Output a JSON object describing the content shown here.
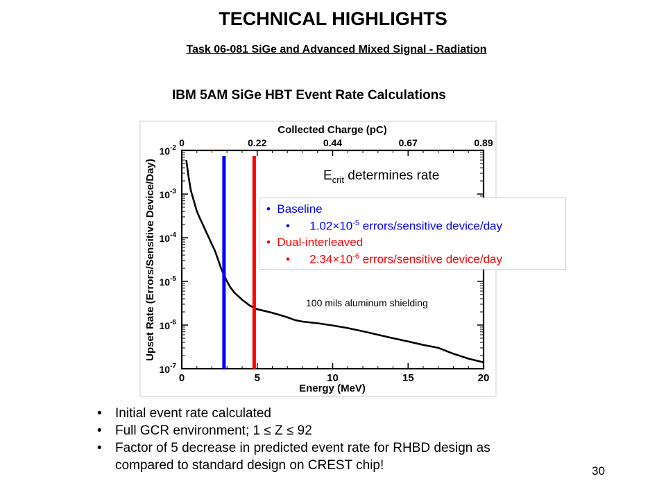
{
  "slide": {
    "title": "TECHNICAL HIGHLIGHTS",
    "subtitle": "Task 06-081 SiGe and Advanced Mixed Signal - Radiation",
    "page_number": "30"
  },
  "chart_data": {
    "type": "line",
    "title": "IBM 5AM SiGe HBT Event Rate Calculations",
    "xlabel": "Energy (MeV)",
    "ylabel": "Upset Rate (Errors/Sensitive Device/Day)",
    "top_xlabel": "Collected Charge (pC)",
    "xlim": [
      0,
      20
    ],
    "ylim": [
      1e-07,
      0.01
    ],
    "yscale": "log",
    "x_ticks": [
      "0",
      "5",
      "10",
      "15",
      "20"
    ],
    "y_ticks": [
      {
        "base": "10",
        "exp": "-7"
      },
      {
        "base": "10",
        "exp": "-6"
      },
      {
        "base": "10",
        "exp": "-5"
      },
      {
        "base": "10",
        "exp": "-4"
      },
      {
        "base": "10",
        "exp": "-3"
      },
      {
        "base": "10",
        "exp": "-2"
      }
    ],
    "top_ticks": [
      "0",
      "0.22",
      "0.44",
      "0.67",
      "0.89"
    ],
    "series": [
      {
        "color": "#000000",
        "points": [
          [
            0.3,
            0.006
          ],
          [
            0.45,
            0.0025
          ],
          [
            0.6,
            0.0012
          ],
          [
            0.8,
            0.0007
          ],
          [
            1.0,
            0.0004
          ],
          [
            1.2,
            0.00028
          ],
          [
            1.4,
            0.0002
          ],
          [
            1.6,
            0.00014
          ],
          [
            1.8,
            0.0001
          ],
          [
            2.0,
            7e-05
          ],
          [
            2.2,
            5e-05
          ],
          [
            2.4,
            3.2e-05
          ],
          [
            2.6,
            2e-05
          ],
          [
            2.8,
            1.4e-05
          ],
          [
            3.0,
            1e-05
          ],
          [
            3.2,
            7.5e-06
          ],
          [
            3.5,
            5.5e-06
          ],
          [
            4.0,
            3.8e-06
          ],
          [
            4.5,
            2.8e-06
          ],
          [
            5.0,
            2.3e-06
          ],
          [
            5.5,
            2.1e-06
          ],
          [
            6.0,
            1.9e-06
          ],
          [
            6.5,
            1.7e-06
          ],
          [
            7.0,
            1.5e-06
          ],
          [
            7.5,
            1.3e-06
          ],
          [
            8.0,
            1.2e-06
          ],
          [
            9.0,
            1.1e-06
          ],
          [
            10.0,
            9.8e-07
          ],
          [
            11.0,
            8.5e-07
          ],
          [
            12.0,
            7.2e-07
          ],
          [
            13.0,
            6e-07
          ],
          [
            14.0,
            5e-07
          ],
          [
            15.0,
            4.2e-07
          ],
          [
            16.0,
            3.5e-07
          ],
          [
            17.0,
            3e-07
          ],
          [
            18.0,
            2.2e-07
          ],
          [
            19.0,
            1.7e-07
          ],
          [
            20.0,
            1.4e-07
          ]
        ]
      }
    ],
    "markers": [
      {
        "x": 2.8,
        "color": "#0000ff"
      },
      {
        "x": 4.8,
        "color": "#ff0000"
      }
    ],
    "annotations": {
      "ecrit_main": "E",
      "ecrit_sub": "crit",
      "ecrit_rest": " determines rate",
      "shielding": "100 mils aluminum shielding"
    },
    "legend": {
      "baseline_label": "Baseline",
      "baseline_mantissa": "1.02",
      "baseline_exp": "-5",
      "baseline_unit": " errors/sensitive device/day",
      "dual_label": "Dual-interleaved",
      "dual_mantissa": "2.34",
      "dual_exp": "-6",
      "dual_unit": " errors/sensitive device/day",
      "times": "×10"
    }
  },
  "bullets": [
    "Initial event rate calculated",
    "Full GCR environment; 1 ≤ Z ≤ 92",
    "Factor of 5 decrease in predicted event rate for RHBD design as",
    "compared to standard design on CREST chip!"
  ]
}
